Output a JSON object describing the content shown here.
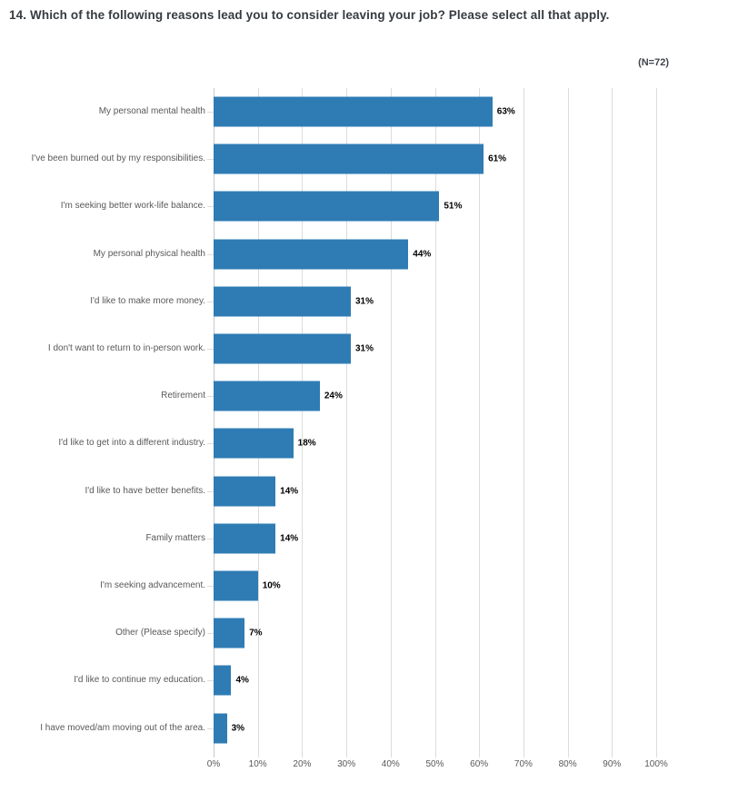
{
  "page": {
    "question_number": "14.",
    "question_text": "Which of the following reasons lead you to consider leaving your job? Please select all that apply.",
    "sample_size_label": "(N=72)"
  },
  "chart_data": {
    "type": "bar",
    "orientation": "horizontal",
    "title": "14. Which of the following reasons lead you to consider leaving your job? Please select all that apply.",
    "annotation": "(N=72)",
    "categories": [
      "My personal mental health",
      "I've been burned out by my responsibilities.",
      "I'm seeking better work-life balance.",
      "My personal physical health",
      "I'd like to make more money.",
      "I don't want to return to in-person work.",
      "Retirement",
      "I'd like to get into a different industry.",
      "I'd like to have better benefits.",
      "Family matters",
      "I'm seeking advancement.",
      "Other (Please specify)",
      "I'd like to continue my education.",
      "I have moved/am moving out of the area."
    ],
    "values": [
      63,
      61,
      51,
      44,
      31,
      31,
      24,
      18,
      14,
      14,
      10,
      7,
      4,
      3
    ],
    "value_labels": [
      "63%",
      "61%",
      "51%",
      "44%",
      "31%",
      "31%",
      "24%",
      "18%",
      "14%",
      "14%",
      "10%",
      "7%",
      "4%",
      "3%"
    ],
    "xlabel": "",
    "ylabel": "",
    "x_ticks": [
      "0%",
      "10%",
      "20%",
      "30%",
      "40%",
      "50%",
      "60%",
      "70%",
      "80%",
      "90%",
      "100%"
    ],
    "xlim": [
      0,
      100
    ],
    "grid": "vertical",
    "legend": "none",
    "colors": {
      "bar": "#2f7cb4",
      "gridline": "#dcdcdc",
      "axis_line": "#c8c8c8",
      "category_label": "#595959",
      "tick_label": "#595959",
      "value_label": "#000000",
      "title": "#363b41"
    }
  }
}
